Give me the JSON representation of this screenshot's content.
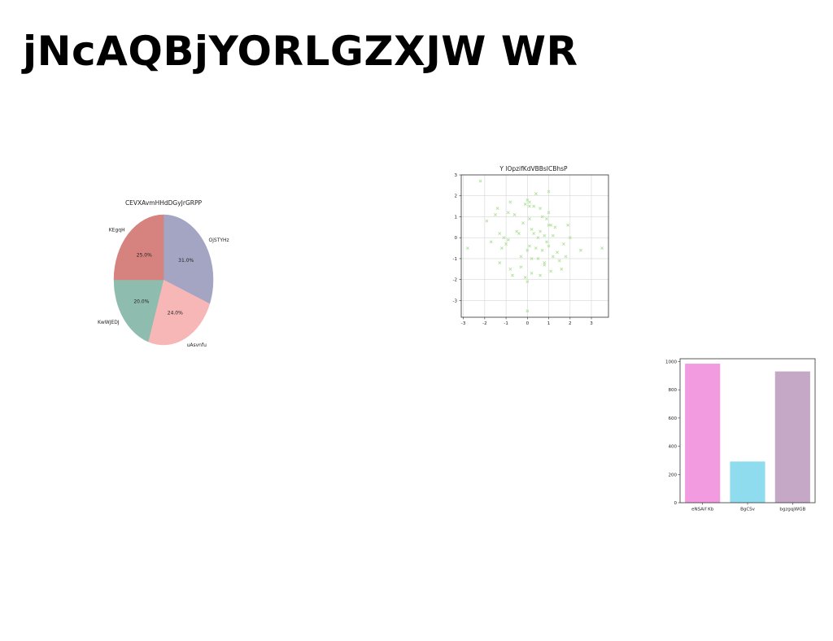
{
  "page": {
    "title": "jNcAQBjYORLGZXJW WR"
  },
  "chart_data": [
    {
      "type": "pie",
      "title": "CEVXAvmHHdDGyJrGRPP",
      "slices": [
        {
          "label": "OjSTYHz",
          "value": 31.0,
          "pct_label": "31.0%",
          "color": "#a3a5c3"
        },
        {
          "label": "uAsvnfu",
          "value": 24.0,
          "pct_label": "24.0%",
          "color": "#f6b7b6"
        },
        {
          "label": "KwWJEDJ",
          "value": 20.0,
          "pct_label": "20.0%",
          "color": "#8ebdb0"
        },
        {
          "label": "KEgqH",
          "value": 25.0,
          "pct_label": "25.0%",
          "color": "#d6837f"
        }
      ]
    },
    {
      "type": "scatter",
      "title": "Y lOpzifKdVBBsICBhsP",
      "marker": "x",
      "color": "#b2e29a",
      "grid": true,
      "xlim": [
        -3.1,
        3.8
      ],
      "ylim": [
        -3.8,
        3.0
      ],
      "xticks": [
        "-3",
        "-2",
        "-1",
        "0",
        "1",
        "2",
        "3"
      ],
      "yticks": [
        "3",
        "2",
        "1",
        "0",
        "-1",
        "-2",
        "-3"
      ],
      "x": [
        -2.8,
        -2.2,
        -1.9,
        -1.7,
        -1.5,
        -1.4,
        -1.3,
        -1.3,
        -1.2,
        -1.1,
        -1.0,
        -0.9,
        -0.9,
        -0.8,
        -0.8,
        -0.7,
        -0.6,
        -0.5,
        -0.4,
        -0.3,
        -0.3,
        -0.2,
        -0.1,
        -0.1,
        0.0,
        0.0,
        0.0,
        0.1,
        0.1,
        0.1,
        0.2,
        0.2,
        0.2,
        0.3,
        0.3,
        0.4,
        0.4,
        0.5,
        0.5,
        0.6,
        0.6,
        0.7,
        0.7,
        0.8,
        0.8,
        0.9,
        0.9,
        1.0,
        1.0,
        1.0,
        1.1,
        1.1,
        1.2,
        1.2,
        1.3,
        1.4,
        1.5,
        1.6,
        1.7,
        1.8,
        1.9,
        2.0,
        2.5,
        3.5,
        0.0,
        0.1,
        0.6,
        0.8,
        1.0
      ],
      "y": [
        -0.5,
        2.7,
        0.8,
        -0.2,
        1.1,
        1.4,
        0.2,
        -1.2,
        -0.5,
        0.0,
        -0.3,
        1.2,
        -0.1,
        1.7,
        -1.5,
        -1.8,
        1.1,
        0.3,
        0.2,
        -0.9,
        -1.4,
        0.7,
        1.6,
        -1.9,
        1.8,
        -0.6,
        -2.1,
        0.9,
        -0.4,
        1.5,
        0.4,
        -1.0,
        -1.7,
        1.5,
        0.2,
        -0.5,
        2.1,
        0.0,
        -1.0,
        1.4,
        0.3,
        -0.6,
        1.0,
        0.1,
        -1.2,
        0.9,
        -0.2,
        1.2,
        -0.4,
        0.6,
        0.6,
        -1.6,
        0.1,
        -0.9,
        0.5,
        -0.7,
        -1.1,
        -1.5,
        -0.3,
        -0.9,
        0.6,
        0.0,
        -0.6,
        -0.5,
        -3.5,
        1.7,
        -1.8,
        -1.3,
        2.2
      ],
      "xlabel": "",
      "ylabel": ""
    },
    {
      "type": "bar",
      "categories": [
        "eNSAif Kb",
        "BgCSv",
        "bgzgqjWGB"
      ],
      "values": [
        985,
        292,
        930
      ],
      "colors": [
        "#f29be0",
        "#8fdcee",
        "#c5a8c6"
      ],
      "ylim": [
        0,
        1020
      ],
      "yticks": [
        "0",
        "200",
        "400",
        "600",
        "800",
        "1000"
      ],
      "title": "",
      "xlabel": "",
      "ylabel": ""
    }
  ]
}
